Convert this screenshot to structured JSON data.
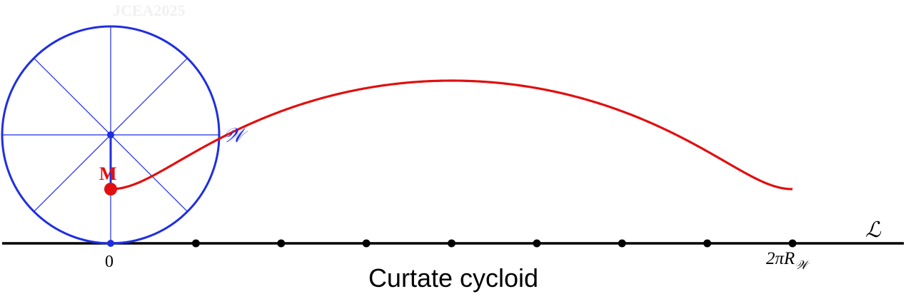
{
  "watermark": "JCEA2025",
  "caption": "Curtate cycloid",
  "labels": {
    "point_m": "M",
    "circle_w": "𝒲",
    "line_l": "ℒ",
    "origin": "0",
    "end_prefix": "2πR",
    "end_sub": "𝒲"
  },
  "colors": {
    "circle": "#1f2fe0",
    "curve": "#e01010",
    "point": "#e01010",
    "axis": "#000000",
    "watermark": "#f0f0f0"
  },
  "chart_data": {
    "type": "curtate-cycloid",
    "radius": 1,
    "tracing_point_distance_ratio": 0.5,
    "parameter_range": [
      0,
      6.2832
    ],
    "axis_ticks": 9,
    "spokes": 8
  }
}
